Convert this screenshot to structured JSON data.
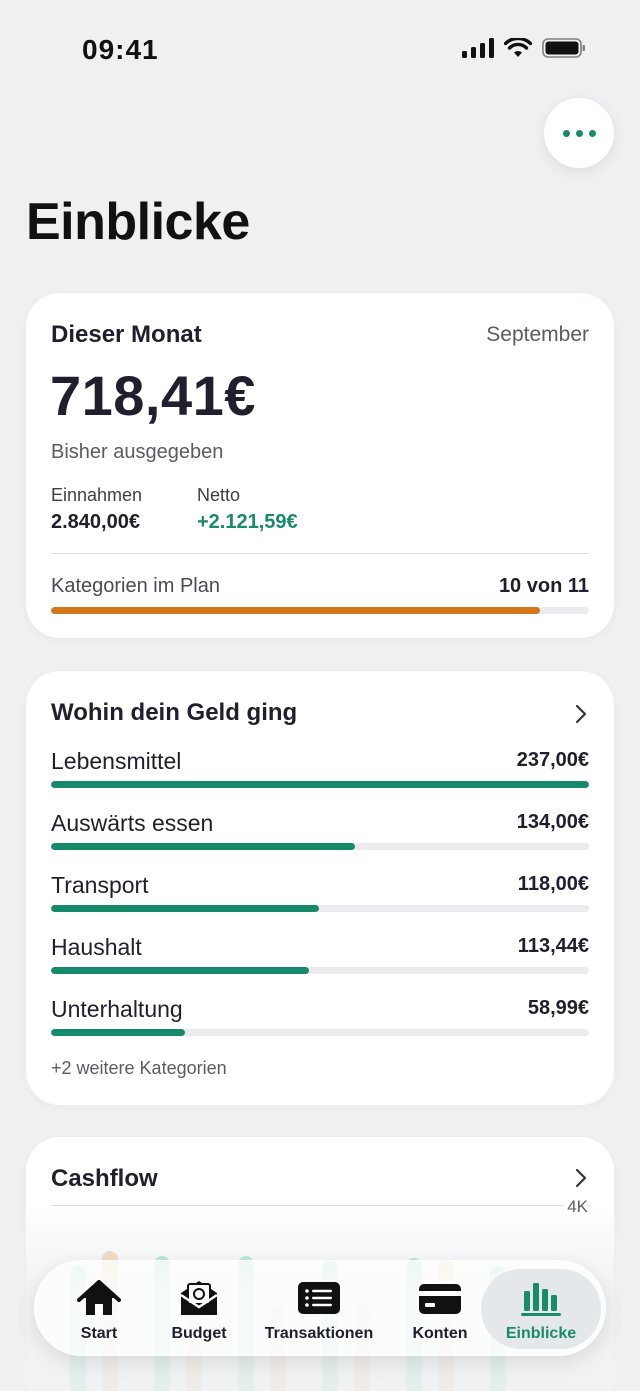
{
  "status_bar": {
    "time": "09:41"
  },
  "page": {
    "title": "Einblicke"
  },
  "month_card": {
    "title": "Dieser Monat",
    "month": "September",
    "amount": "718,41€",
    "subtitle": "Bisher ausgegeben",
    "income_label": "Einnahmen",
    "income_value": "2.840,00€",
    "net_label": "Netto",
    "net_value": "+2.121,59€",
    "plan_label": "Kategorien im Plan",
    "plan_value": "10 von 11",
    "plan_progress": 0.909,
    "plan_color": "#d4761a"
  },
  "categories_card": {
    "title": "Wohin dein Geld ging",
    "bar_color": "#168a6b",
    "items": [
      {
        "label": "Lebensmittel",
        "value": "237,00€",
        "fraction": 1.0
      },
      {
        "label": "Auswärts essen",
        "value": "134,00€",
        "fraction": 0.565
      },
      {
        "label": "Transport",
        "value": "118,00€",
        "fraction": 0.498
      },
      {
        "label": "Haushalt",
        "value": "113,44€",
        "fraction": 0.479
      },
      {
        "label": "Unterhaltung",
        "value": "58,99€",
        "fraction": 0.249
      }
    ],
    "more_text": "+2 weitere Kategorien"
  },
  "cashflow_card": {
    "title": "Cashflow",
    "tick_top": "4K"
  },
  "tabbar": {
    "active": "Einblicke",
    "accent": "#1a8a6c",
    "tabs": [
      {
        "label": "Start",
        "icon": "house-icon"
      },
      {
        "label": "Budget",
        "icon": "envelope-money-icon"
      },
      {
        "label": "Transaktionen",
        "icon": "list-icon"
      },
      {
        "label": "Konten",
        "icon": "credit-card-icon"
      },
      {
        "label": "Einblicke",
        "icon": "bar-chart-icon"
      }
    ]
  }
}
